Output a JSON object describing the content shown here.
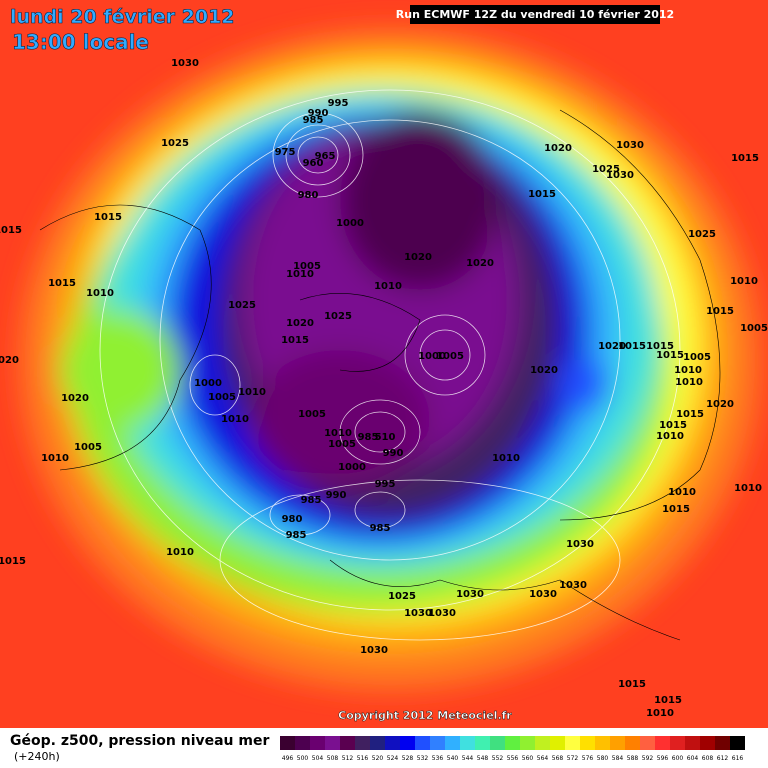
{
  "header": {
    "date": "lundi 20 février 2012",
    "time": "13:00 locale",
    "run": "Run ECMWF 12Z du vendredi 10 février 2012"
  },
  "copyright": "Copyright 2012 Meteociel.fr",
  "legend": {
    "title": "Géop. z500, pression niveau mer",
    "lead": "(+240h)",
    "levels": [
      496,
      500,
      504,
      508,
      512,
      516,
      520,
      524,
      528,
      532,
      536,
      540,
      544,
      548,
      552,
      556,
      560,
      564,
      568,
      572,
      576,
      580,
      584,
      588,
      592,
      596,
      600,
      604,
      608,
      612,
      616
    ],
    "colors": [
      "#3a0030",
      "#4d0050",
      "#6a0070",
      "#7a1090",
      "#5a0050",
      "#402060",
      "#202080",
      "#1010c0",
      "#0000f0",
      "#2050ff",
      "#3080ff",
      "#30b0ff",
      "#40e0e0",
      "#40f0b0",
      "#40e080",
      "#60f040",
      "#90f030",
      "#c0f020",
      "#e0f000",
      "#ffff40",
      "#ffe000",
      "#ffc000",
      "#ffa000",
      "#ff8000",
      "#ff6040",
      "#ff3030",
      "#e02020",
      "#c01010",
      "#a00000",
      "#700000",
      "#000000"
    ]
  },
  "pressure_labels": [
    1030,
    1025,
    1015,
    1015,
    1015,
    1010,
    1020,
    1020,
    1010,
    1005,
    1015,
    1010,
    995,
    990,
    985,
    975,
    965,
    960,
    980,
    1000,
    1005,
    1010,
    1025,
    1025,
    1020,
    1015,
    1020,
    1020,
    1010,
    1000,
    1005,
    1010,
    1010,
    1005,
    1000,
    1005,
    1010,
    1005,
    985,
    510,
    990,
    1000,
    995,
    990,
    985,
    980,
    985,
    985,
    1020,
    1030,
    1025,
    1030,
    1015,
    1015,
    1025,
    1010,
    1015,
    1020,
    1015,
    1015,
    1015,
    1005,
    1010,
    1010,
    1020,
    1020,
    1015,
    1015,
    1010,
    1010,
    1010,
    1015,
    1010,
    1030,
    1030,
    1030,
    1030,
    1025,
    1030,
    1030,
    1030,
    1015,
    1015,
    1010,
    1005
  ]
}
